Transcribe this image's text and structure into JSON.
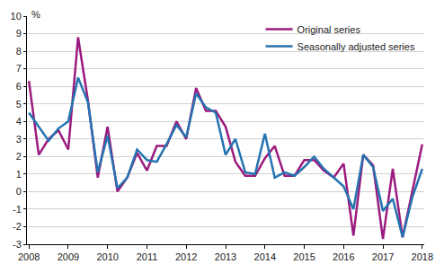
{
  "chart_data": {
    "type": "line",
    "y_label": "%",
    "categories": [
      "2008",
      null,
      null,
      null,
      "2009",
      null,
      null,
      null,
      "2010",
      null,
      null,
      null,
      "2011",
      null,
      null,
      null,
      "2012",
      null,
      null,
      null,
      "2013",
      null,
      null,
      null,
      "2014",
      null,
      null,
      null,
      "2015",
      null,
      null,
      null,
      "2016",
      null,
      null,
      null,
      "2017",
      null,
      null,
      null,
      "2018"
    ],
    "series": [
      {
        "name": "Original series",
        "color": "#9b1b7e",
        "values": [
          6.3,
          2.1,
          3.0,
          3.5,
          2.4,
          8.8,
          5.2,
          0.8,
          3.7,
          0.0,
          0.8,
          2.2,
          1.2,
          2.6,
          2.6,
          4.0,
          3.0,
          5.9,
          4.6,
          4.6,
          3.7,
          1.7,
          0.9,
          0.9,
          1.9,
          2.6,
          0.9,
          0.9,
          1.8,
          1.8,
          1.2,
          0.8,
          1.6,
          -2.5,
          2.1,
          1.5,
          -2.7,
          1.3,
          -2.6,
          0.1,
          2.7
        ]
      },
      {
        "name": "Seasonally adjusted series",
        "color": "#2573b0",
        "values": [
          4.5,
          3.7,
          2.9,
          3.6,
          4.0,
          6.5,
          5.1,
          1.1,
          3.2,
          0.2,
          0.8,
          2.4,
          1.8,
          1.7,
          2.7,
          3.8,
          3.1,
          5.6,
          4.8,
          4.5,
          2.1,
          3.0,
          1.1,
          1.0,
          3.3,
          0.8,
          1.1,
          0.9,
          1.4,
          2.0,
          1.3,
          0.8,
          0.3,
          -1.0,
          2.1,
          1.4,
          -1.1,
          -0.4,
          -2.6,
          -0.3,
          1.3
        ]
      }
    ],
    "ylim": [
      -3,
      10
    ],
    "yticks": [
      -3,
      -2,
      -1,
      0,
      1,
      2,
      3,
      4,
      5,
      6,
      7,
      8,
      9,
      10
    ],
    "grid": true,
    "legend": "top-right"
  }
}
